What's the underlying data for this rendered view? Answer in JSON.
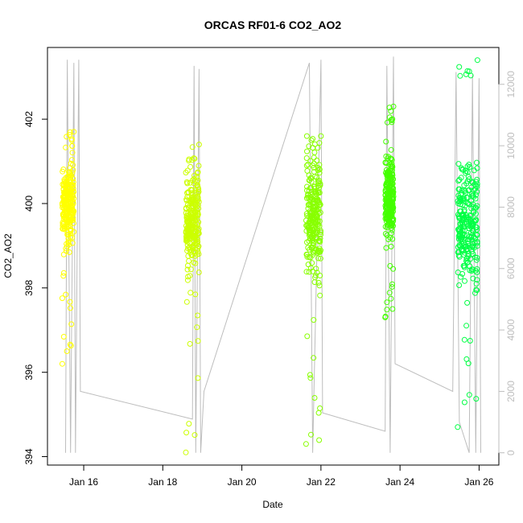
{
  "chart_data": {
    "type": "scatter",
    "title": "ORCAS RF01-6 CO2_AO2",
    "xlabel": "Date",
    "ylabel": "CO2_AO2",
    "xlim": [
      "2016-01-15T02:00",
      "2016-01-26T12:00"
    ],
    "ylim": [
      393.8,
      403.7
    ],
    "y2lim": [
      -400,
      13200
    ],
    "x_ticks": [
      {
        "date": "2016-01-16",
        "label": "Jan 16"
      },
      {
        "date": "2016-01-18",
        "label": "Jan 18"
      },
      {
        "date": "2016-01-20",
        "label": "Jan 20"
      },
      {
        "date": "2016-01-22",
        "label": "Jan 22"
      },
      {
        "date": "2016-01-24",
        "label": "Jan 24"
      },
      {
        "date": "2016-01-26",
        "label": "Jan 26"
      }
    ],
    "y_ticks": [
      394,
      396,
      398,
      400,
      402
    ],
    "y2_ticks": [
      0,
      2000,
      4000,
      6000,
      8000,
      10000,
      12000
    ],
    "series": [
      {
        "color": "#ffff00",
        "start": "2016-01-15T11:00",
        "end": "2016-01-15T18:00",
        "center": 400.0,
        "spread": 1.6,
        "min": 396.2,
        "max": 401.7
      },
      {
        "color": "#ccff00",
        "start": "2016-01-18T14:00",
        "end": "2016-01-18T22:00",
        "center": 399.6,
        "spread": 2.0,
        "min": 394.1,
        "max": 401.4
      },
      {
        "color": "#88ff00",
        "start": "2016-01-21T15:00",
        "end": "2016-01-22T00:00",
        "center": 399.7,
        "spread": 2.3,
        "min": 394.3,
        "max": 401.6
      },
      {
        "color": "#44ff00",
        "start": "2016-01-23T15:00",
        "end": "2016-01-23T20:00",
        "center": 400.2,
        "spread": 1.7,
        "min": 397.3,
        "max": 402.3
      },
      {
        "color": "#00ff44",
        "start": "2016-01-25T11:00",
        "end": "2016-01-25T23:00",
        "center": 399.6,
        "spread": 2.6,
        "min": 394.7,
        "max": 403.4
      }
    ],
    "secondary_line": {
      "color": "#bdbdbd",
      "points": [
        [
          "2016-01-15T13:00",
          0
        ],
        [
          "2016-01-15T14:00",
          12800
        ],
        [
          "2016-01-15T16:00",
          0
        ],
        [
          "2016-01-15T18:00",
          12700
        ],
        [
          "2016-01-15T19:00",
          0
        ],
        [
          "2016-01-15T21:00",
          12800
        ],
        [
          "2016-01-15T22:00",
          2000
        ],
        [
          "2016-01-18T18:00",
          1100
        ],
        [
          "2016-01-18T19:00",
          12600
        ],
        [
          "2016-01-18T20:00",
          0
        ],
        [
          "2016-01-18T22:00",
          12500
        ],
        [
          "2016-01-18T23:00",
          0
        ],
        [
          "2016-01-19T01:00",
          2000
        ],
        [
          "2016-01-21T17:00",
          12700
        ],
        [
          "2016-01-21T19:00",
          0
        ],
        [
          "2016-01-22T00:00",
          12800
        ],
        [
          "2016-01-22T01:00",
          1300
        ],
        [
          "2016-01-23T15:00",
          700
        ],
        [
          "2016-01-23T16:00",
          12600
        ],
        [
          "2016-01-23T18:00",
          0
        ],
        [
          "2016-01-23T20:00",
          12900
        ],
        [
          "2016-01-23T21:00",
          2900
        ],
        [
          "2016-01-25T08:00",
          2000
        ],
        [
          "2016-01-25T10:00",
          12400
        ],
        [
          "2016-01-25T12:00",
          1000
        ],
        [
          "2016-01-25T18:00",
          0
        ],
        [
          "2016-01-25T20:00",
          12300
        ],
        [
          "2016-01-25T22:00",
          0
        ],
        [
          "2016-01-26T00:00",
          12200
        ],
        [
          "2016-01-26T01:00",
          0
        ]
      ]
    }
  }
}
